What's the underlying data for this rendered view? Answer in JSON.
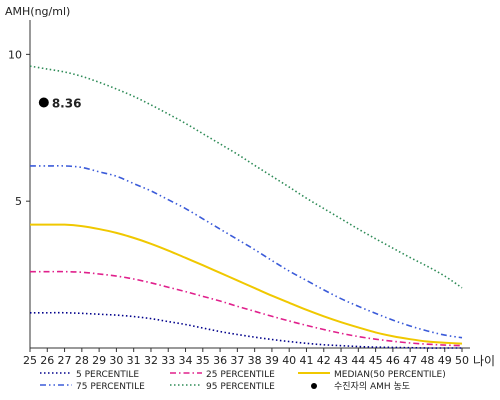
{
  "chart_data": {
    "type": "line",
    "ylabel": "AMH(ng/ml)",
    "xlabel": "나이",
    "xlim": [
      25,
      50
    ],
    "ylim": [
      0,
      11
    ],
    "yticks": [
      5,
      10
    ],
    "x": [
      25,
      26,
      27,
      28,
      29,
      30,
      31,
      32,
      33,
      34,
      35,
      36,
      37,
      38,
      39,
      40,
      41,
      42,
      43,
      44,
      45,
      46,
      47,
      48,
      49,
      50
    ],
    "series": [
      {
        "name": "5 PERCENTILE",
        "color": "#00008b",
        "dash": "dotted",
        "values": [
          1.2,
          1.2,
          1.2,
          1.18,
          1.15,
          1.12,
          1.07,
          1.0,
          0.9,
          0.8,
          0.68,
          0.56,
          0.46,
          0.37,
          0.29,
          0.22,
          0.16,
          0.11,
          0.08,
          0.05,
          0.03,
          0.02,
          0.01,
          0.0,
          0.0,
          0.0
        ]
      },
      {
        "name": "25 PERCENTILE",
        "color": "#e0208c",
        "dash": "dashdot",
        "values": [
          2.6,
          2.6,
          2.6,
          2.58,
          2.52,
          2.45,
          2.35,
          2.22,
          2.07,
          1.92,
          1.76,
          1.6,
          1.42,
          1.25,
          1.08,
          0.92,
          0.77,
          0.63,
          0.5,
          0.39,
          0.3,
          0.23,
          0.17,
          0.13,
          0.1,
          0.08
        ]
      },
      {
        "name": "75 PERCENTILE",
        "color": "#3b5bd9",
        "dash": "dashdotdot",
        "values": [
          6.2,
          6.2,
          6.2,
          6.15,
          6.0,
          5.85,
          5.6,
          5.35,
          5.05,
          4.75,
          4.4,
          4.05,
          3.7,
          3.35,
          2.98,
          2.62,
          2.3,
          1.98,
          1.68,
          1.42,
          1.18,
          0.95,
          0.75,
          0.58,
          0.44,
          0.35
        ]
      },
      {
        "name": "95 PERCENTILE",
        "color": "#2e8b57",
        "dash": "dotted",
        "values": [
          9.6,
          9.5,
          9.4,
          9.25,
          9.05,
          8.82,
          8.57,
          8.28,
          7.97,
          7.65,
          7.3,
          6.95,
          6.6,
          6.22,
          5.85,
          5.48,
          5.1,
          4.75,
          4.4,
          4.05,
          3.72,
          3.4,
          3.08,
          2.78,
          2.45,
          2.05
        ]
      },
      {
        "name": "MEDIAN(50 PERCENTILE)",
        "color": "#f0c800",
        "dash": "solid",
        "values": [
          4.2,
          4.2,
          4.2,
          4.15,
          4.05,
          3.92,
          3.75,
          3.55,
          3.32,
          3.07,
          2.82,
          2.56,
          2.3,
          2.04,
          1.78,
          1.54,
          1.3,
          1.08,
          0.88,
          0.7,
          0.53,
          0.4,
          0.3,
          0.22,
          0.18,
          0.15
        ]
      }
    ],
    "point": {
      "name": "수진자의 AMH 농도",
      "x": 25.8,
      "y": 8.36,
      "label": "8.36"
    },
    "legend_position": "bottom",
    "legend_order": [
      "5 PERCENTILE",
      "25 PERCENTILE",
      "MEDIAN(50 PERCENTILE)",
      "75 PERCENTILE",
      "95 PERCENTILE",
      "수진자의 AMH 농도"
    ],
    "grid": false
  }
}
